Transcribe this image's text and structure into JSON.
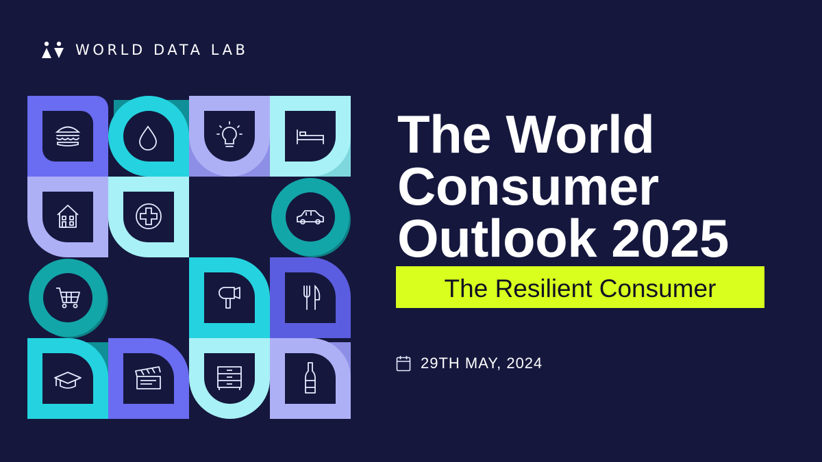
{
  "brand": {
    "name": "WORLD DATA LAB",
    "logo_icon": "two-figures-logo-icon"
  },
  "title_lines": [
    "The World",
    "Consumer",
    "Outlook 2025"
  ],
  "subtitle": "The Resilient Consumer",
  "date": {
    "text": "29TH MAY, 2024",
    "icon": "calendar-icon"
  },
  "colors": {
    "background": "#15173d",
    "accent_yellow": "#d8ff1e",
    "periwinkle": "#6a6cf1",
    "lavender": "#aeb0f6",
    "turquoise": "#24d3df",
    "teal": "#13a6a8",
    "mint": "#a8f1f6"
  },
  "mosaic_icons": [
    "burger-icon",
    "water-drop-icon",
    "lightbulb-icon",
    "bed-icon",
    "house-icon",
    "medical-cross-icon",
    "car-icon",
    "shopping-cart-icon",
    "hair-dryer-icon",
    "cutlery-icon",
    "graduation-cap-icon",
    "clapperboard-icon",
    "drawers-icon",
    "bottle-icon"
  ]
}
